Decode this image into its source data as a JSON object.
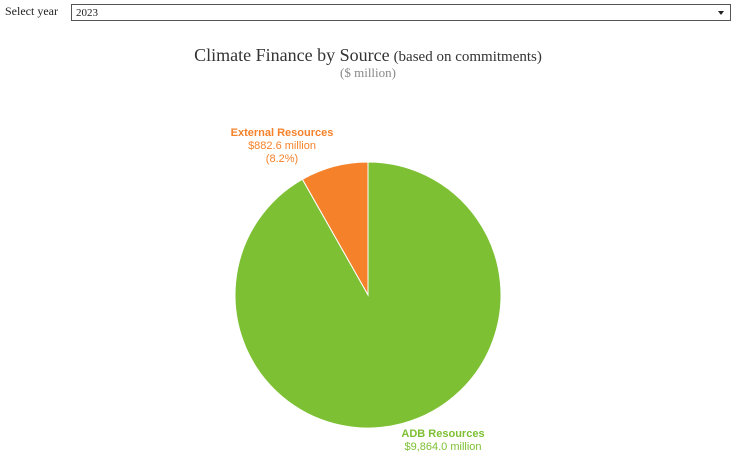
{
  "controls": {
    "year_label": "Select year",
    "year_value": "2023"
  },
  "colors": {
    "adb": "#7dc033",
    "external": "#f5822a"
  },
  "chart_data": {
    "type": "pie",
    "title": "Climate Finance by Source",
    "title_suffix": "(based on commitments)",
    "subtitle": "($ million)",
    "start_angle_deg": 0,
    "direction": "counterclockwise",
    "slices": [
      {
        "name": "External Resources",
        "value": 882.6,
        "value_label": "$882.6 million",
        "percent_label": "(8.2%)",
        "color": "#f5822a"
      },
      {
        "name": "ADB Resources",
        "value": 9864.0,
        "value_label": "$9,864.0 million",
        "percent_label": "",
        "color": "#7dc033"
      }
    ]
  }
}
